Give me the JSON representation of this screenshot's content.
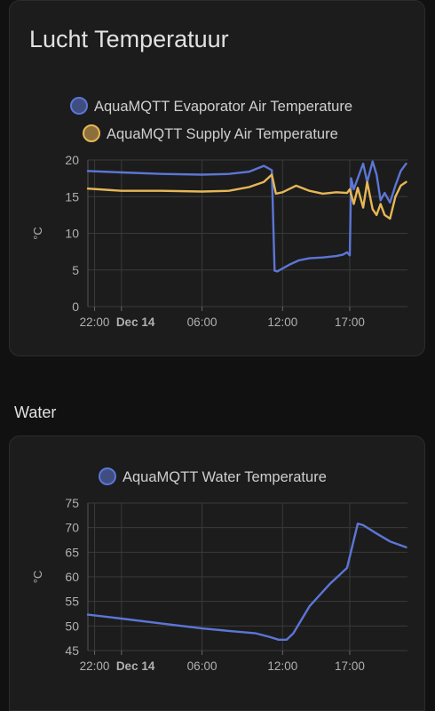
{
  "air_card": {
    "title": "Lucht Temperatuur"
  },
  "water_section": {
    "title": "Water"
  },
  "colors": {
    "evaporator": "#5c76d6",
    "supply": "#e7b757",
    "water": "#5c76d6",
    "grid": "#3a3a3a",
    "tick": "#b0b0b0"
  },
  "chart_data": [
    {
      "type": "line",
      "ylabel": "°C",
      "ylim": [
        0,
        20
      ],
      "yticks": [
        0,
        5,
        10,
        15,
        20
      ],
      "xlim": [
        -2.5,
        21.3
      ],
      "xticks": [
        {
          "x": -2,
          "label": "22:00"
        },
        {
          "x": 0,
          "label": "Dec 14"
        },
        {
          "x": 6,
          "label": "06:00"
        },
        {
          "x": 12,
          "label": "12:00"
        },
        {
          "x": 17,
          "label": "17:00"
        }
      ],
      "legend_position": "top",
      "series": [
        {
          "name": "AquaMQTT Evaporator Air Temperature",
          "color": "#5c76d6",
          "x": [
            -2.5,
            0,
            3,
            6,
            8,
            9.5,
            10.6,
            11.2,
            11.4,
            11.6,
            12,
            12.6,
            13.2,
            14,
            15,
            16,
            16.5,
            16.8,
            17,
            17.1,
            17.3,
            17.6,
            18,
            18.3,
            18.7,
            19,
            19.3,
            19.6,
            20,
            20.4,
            20.8,
            21.2
          ],
          "values": [
            18.5,
            18.3,
            18.1,
            18.0,
            18.1,
            18.4,
            19.2,
            18.6,
            4.9,
            4.8,
            5.2,
            5.8,
            6.3,
            6.6,
            6.7,
            6.9,
            7.1,
            7.4,
            7.0,
            17.5,
            16.0,
            17.5,
            19.5,
            17.0,
            19.8,
            18.0,
            14.5,
            15.5,
            14.2,
            16.5,
            18.5,
            19.5
          ]
        },
        {
          "name": "AquaMQTT Supply Air Temperature",
          "color": "#e7b757",
          "x": [
            -2.5,
            0,
            3,
            6,
            8,
            9.5,
            10.6,
            11.2,
            11.5,
            12,
            13,
            14,
            15,
            16,
            16.8,
            17,
            17.3,
            17.6,
            18,
            18.3,
            18.7,
            19,
            19.3,
            19.6,
            20,
            20.4,
            20.8,
            21.2
          ],
          "values": [
            16.1,
            15.8,
            15.8,
            15.7,
            15.8,
            16.3,
            17.0,
            18.0,
            15.4,
            15.6,
            16.5,
            15.8,
            15.4,
            15.6,
            15.5,
            16.0,
            14.0,
            16.2,
            13.5,
            17.0,
            13.3,
            12.5,
            14.0,
            12.5,
            12.0,
            15.0,
            16.5,
            17.0
          ]
        }
      ]
    },
    {
      "type": "line",
      "ylabel": "°C",
      "ylim": [
        45,
        75
      ],
      "yticks": [
        45,
        50,
        55,
        60,
        65,
        70,
        75
      ],
      "xlim": [
        -2.5,
        21.3
      ],
      "xticks": [
        {
          "x": -2,
          "label": "22:00"
        },
        {
          "x": 0,
          "label": "Dec 14"
        },
        {
          "x": 6,
          "label": "06:00"
        },
        {
          "x": 12,
          "label": "12:00"
        },
        {
          "x": 17,
          "label": "17:00"
        }
      ],
      "legend_position": "top",
      "series": [
        {
          "name": "AquaMQTT Water Temperature",
          "color": "#5c76d6",
          "x": [
            -2.5,
            0,
            3,
            6,
            8,
            10,
            11,
            11.7,
            12.3,
            12.8,
            14,
            15.5,
            16.8,
            17.6,
            18,
            19,
            20,
            21.2
          ],
          "values": [
            52.3,
            51.5,
            50.5,
            49.5,
            49.0,
            48.5,
            47.8,
            47.2,
            47.2,
            48.5,
            54.0,
            58.5,
            61.8,
            70.8,
            70.5,
            68.8,
            67.2,
            66.0
          ]
        }
      ]
    }
  ]
}
